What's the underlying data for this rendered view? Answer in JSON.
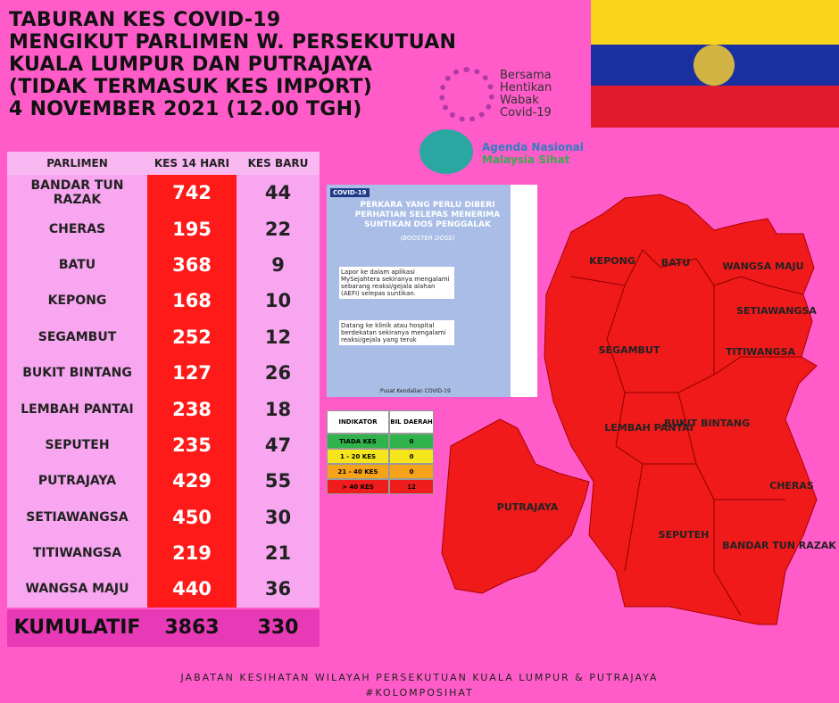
{
  "title": [
    "TABURAN KES COVID-19",
    "MENGIKUT PARLIMEN W. PERSEKUTUAN",
    "KUALA LUMPUR DAN PUTRAJAYA",
    "(TIDAK TERMASUK KES IMPORT)",
    "4 NOVEMBER 2021 (12.00 TGH)"
  ],
  "logos": {
    "bersama": [
      "Bersama",
      "Hentikan",
      "Wabak",
      "Covid-19"
    ],
    "agenda": [
      "Agenda Nasional",
      "Malaysia Sihat"
    ]
  },
  "table": {
    "headers": [
      "PARLIMEN",
      "KES 14 HARI",
      "KES BARU"
    ],
    "rows": [
      [
        "BANDAR TUN RAZAK",
        742,
        44
      ],
      [
        "CHERAS",
        195,
        22
      ],
      [
        "BATU",
        368,
        9
      ],
      [
        "KEPONG",
        168,
        10
      ],
      [
        "SEGAMBUT",
        252,
        12
      ],
      [
        "BUKIT BINTANG",
        127,
        26
      ],
      [
        "LEMBAH PANTAI",
        238,
        18
      ],
      [
        "SEPUTEH",
        235,
        47
      ],
      [
        "PUTRAJAYA",
        429,
        55
      ],
      [
        "SETIAWANGSA",
        450,
        30
      ],
      [
        "TITIWANGSA",
        219,
        21
      ],
      [
        "WANGSA MAJU",
        440,
        36
      ]
    ],
    "total": [
      "KUMULATIF",
      3863,
      330
    ]
  },
  "poster": {
    "tag": "COVID-19",
    "heading": "PERKARA YANG PERLU DIBERI PERHATIAN SELEPAS MENERIMA SUNTIKAN DOS PENGGALAK",
    "sub": "(BOOSTER DOSE)",
    "point1": "Lapor ke dalam aplikasi MySejahtera sekiranya mengalami sebarang reaksi/gejala alahan (AEFI) selepas suntikan.",
    "point2": "Datang ke klinik atau hospital berdekatan sekiranya mengalami reaksi/gejala yang teruk",
    "footer": "Pusat Kendalian COVID-19"
  },
  "indicator": {
    "headers": [
      "INDIKATOR",
      "BIL DAERAH"
    ],
    "rows": [
      {
        "label": "TIADA KES",
        "count": 0,
        "color": "#2fb34a"
      },
      {
        "label": "1 - 20 KES",
        "count": 0,
        "color": "#f4e51c"
      },
      {
        "label": "21 - 40 KES",
        "count": 0,
        "color": "#f7a21b"
      },
      {
        "label": "> 40 KES",
        "count": 12,
        "color": "#ee1c1c"
      }
    ]
  },
  "map_labels": [
    "KEPONG",
    "BATU",
    "WANGSA MAJU",
    "SETIAWANGSA",
    "SEGAMBUT",
    "TITIWANGSA",
    "LEMBAH PANTAI",
    "BUKIT BINTANG",
    "CHERAS",
    "BANDAR TUN RAZAK",
    "SEPUTEH",
    "PUTRAJAYA"
  ],
  "footer": [
    "JABATAN KESIHATAN WILAYAH PERSEKUTUAN KUALA LUMPUR & PUTRAJAYA",
    "#KOLOMPOSIHAT"
  ]
}
